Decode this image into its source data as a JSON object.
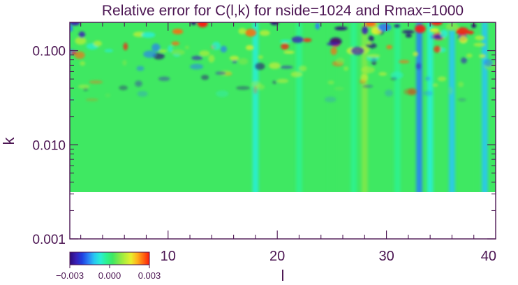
{
  "chart_data": {
    "type": "heatmap",
    "title": "Relative error for C(l,k) for nside=1024 and Rmax=1000",
    "xlabel": "l",
    "ylabel": "k",
    "xlim": [
      1,
      40
    ],
    "ylim": [
      0.001,
      0.2
    ],
    "y_scale": "log",
    "data_k_range": [
      0.003,
      0.2
    ],
    "x_ticks": [
      10,
      20,
      30,
      40
    ],
    "x_tick_labels": [
      "10",
      "20",
      "30",
      "40"
    ],
    "y_ticks": [
      0.001,
      0.01,
      0.1
    ],
    "y_tick_labels": [
      "0.001",
      "0.010",
      "0.100"
    ],
    "colorbar": {
      "min": -0.003,
      "max": 0.003,
      "tick_labels": [
        "−0.003",
        "0.000",
        "0.003"
      ],
      "colors": [
        "#2c0a78",
        "#3a1fb5",
        "#1f3fe0",
        "#2a7ff5",
        "#27c7f2",
        "#29eed5",
        "#2cf28f",
        "#3fe862",
        "#7fe84a",
        "#b4ee3a",
        "#e8ef2e",
        "#ffb21c",
        "#ff6a12",
        "#ff1a0a"
      ]
    },
    "column_bias": [
      {
        "l": 18,
        "value": -0.0009
      },
      {
        "l": 22,
        "value": -0.0004
      },
      {
        "l": 25,
        "value": 0.0004
      },
      {
        "l": 27,
        "value": -0.0004
      },
      {
        "l": 28,
        "value": 0.0006
      },
      {
        "l": 31,
        "value": -0.0004
      },
      {
        "l": 33,
        "value": -0.0018
      },
      {
        "l": 34,
        "value": -0.0009
      },
      {
        "l": 36,
        "value": -0.0011
      },
      {
        "l": 38,
        "value": 0.0004
      },
      {
        "l": 39,
        "value": -0.0011
      }
    ],
    "colors": {
      "frame": "#4b1552",
      "text": "#4b1552",
      "background": "#ffffff"
    }
  }
}
